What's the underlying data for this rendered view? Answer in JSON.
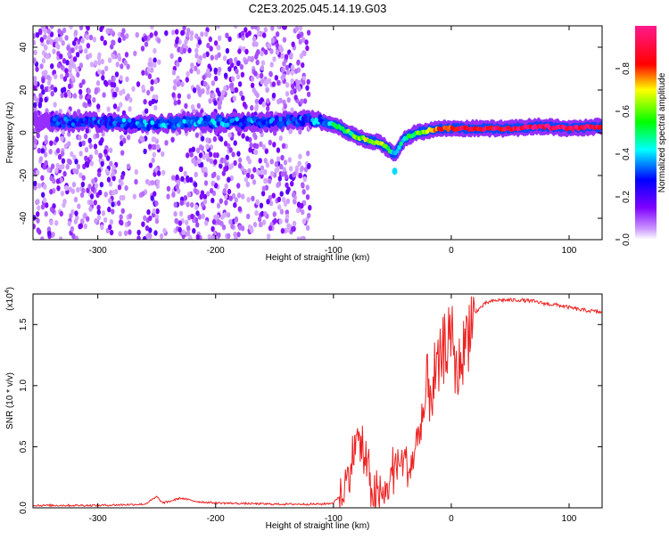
{
  "figure_title": "C2E3.2025.045.14.19.G03",
  "chart_data": [
    {
      "type": "heatmap",
      "title": "C2E3.2025.045.14.19.G03",
      "xlabel": "Height of straight line (km)",
      "ylabel": "Frequency (Hz)",
      "xlim": [
        -355,
        128
      ],
      "ylim": [
        -50,
        50
      ],
      "x_ticks": [
        -300,
        -200,
        -100,
        0,
        100
      ],
      "y_ticks": [
        -40,
        -20,
        0,
        20,
        40
      ],
      "x_tick_labels": [
        "-300",
        "-200",
        "-100",
        "0",
        "100"
      ],
      "y_tick_labels": [
        "-40",
        "-20",
        "0",
        "20",
        "40"
      ],
      "colorbar": {
        "label": "Normalized spectral amplitude",
        "range": [
          0.0,
          1.0
        ],
        "ticks": [
          0.0,
          0.2,
          0.4,
          0.6,
          0.8
        ],
        "tick_labels": [
          "0.0",
          "0.2",
          "0.4",
          "0.6",
          "0.8"
        ],
        "colormap": "rainbow (violet-blue-cyan-green-yellow-red-pink)"
      },
      "signal_track": {
        "x": [
          -350,
          -300,
          -250,
          -200,
          -150,
          -120,
          -100,
          -80,
          -60,
          -48,
          -40,
          -30,
          -20,
          -10,
          0,
          20,
          50,
          75,
          100,
          128
        ],
        "frequency_hz": [
          5,
          5,
          4,
          5,
          5,
          6,
          4,
          -2,
          -5,
          -10,
          -3,
          0,
          1,
          2,
          2,
          2,
          2,
          3,
          2,
          3
        ],
        "amplitude": [
          0.3,
          0.3,
          0.35,
          0.35,
          0.3,
          0.3,
          0.45,
          0.6,
          0.7,
          0.4,
          0.5,
          0.6,
          0.7,
          0.8,
          0.85,
          0.9,
          0.9,
          0.95,
          0.95,
          0.9
        ]
      },
      "noise_band_x": [
        -355,
        -120
      ]
    },
    {
      "type": "line",
      "xlabel": "Height of straight line (km)",
      "ylabel": "SNR (10 * v/v)",
      "y_multiplier_label": "(x10",
      "y_multiplier_exponent": "4",
      "y_multiplier_close": ")",
      "xlim": [
        -355,
        128
      ],
      "ylim": [
        0,
        1.75
      ],
      "x_ticks": [
        -300,
        -200,
        -100,
        0,
        100
      ],
      "y_ticks": [
        0.0,
        0.5,
        1.0,
        1.5
      ],
      "x_tick_labels": [
        "-300",
        "-200",
        "-100",
        "0",
        "100"
      ],
      "y_tick_labels": [
        "0.0",
        "0.5",
        "1.0",
        "1.5"
      ],
      "series": [
        {
          "name": "SNR",
          "color": "#ee2222",
          "x": [
            -355,
            -300,
            -260,
            -250,
            -245,
            -240,
            -230,
            -215,
            -200,
            -150,
            -110,
            -100,
            -90,
            -85,
            -80,
            -75,
            -70,
            -65,
            -60,
            -55,
            -50,
            -45,
            -40,
            -35,
            -30,
            -25,
            -20,
            -15,
            -10,
            -5,
            0,
            5,
            10,
            15,
            20,
            30,
            40,
            50,
            60,
            70,
            80,
            90,
            100,
            110,
            120,
            128
          ],
          "values": [
            0.02,
            0.02,
            0.03,
            0.09,
            0.04,
            0.05,
            0.08,
            0.05,
            0.04,
            0.03,
            0.03,
            0.04,
            0.15,
            0.35,
            0.6,
            0.45,
            0.25,
            0.1,
            0.05,
            0.15,
            0.3,
            0.4,
            0.38,
            0.3,
            0.5,
            0.7,
            0.95,
            1.0,
            1.15,
            1.3,
            1.4,
            1.1,
            1.3,
            1.5,
            1.6,
            1.68,
            1.7,
            1.7,
            1.7,
            1.69,
            1.67,
            1.66,
            1.64,
            1.62,
            1.61,
            1.6
          ]
        }
      ]
    }
  ]
}
